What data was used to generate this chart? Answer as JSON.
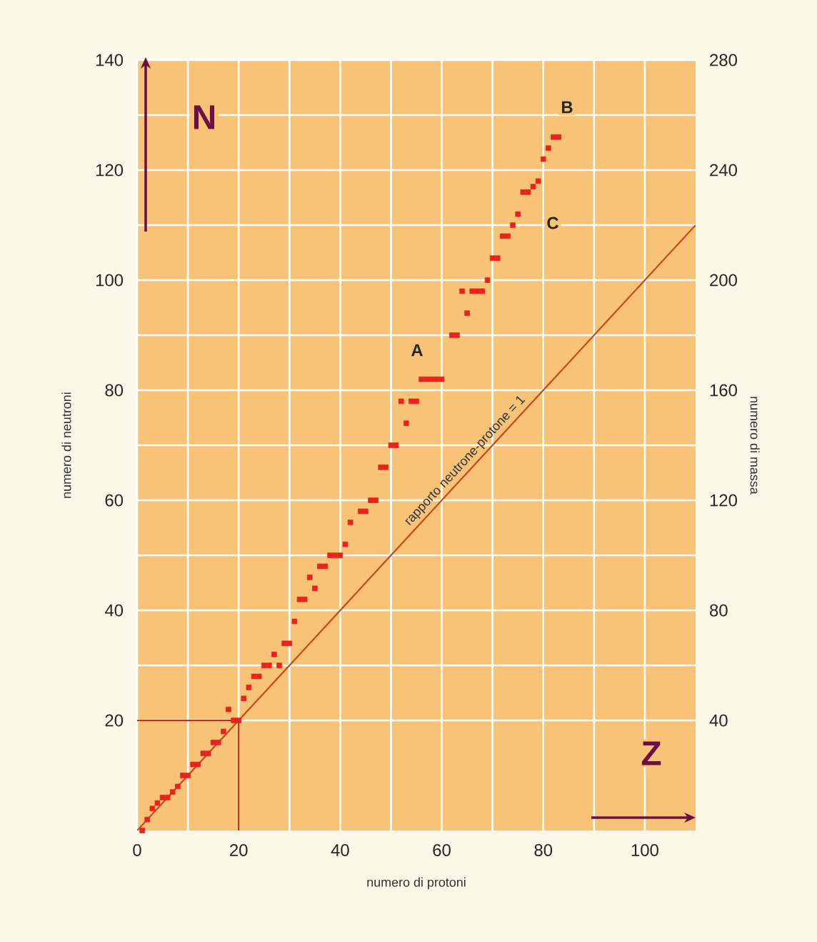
{
  "chart_data": {
    "type": "scatter",
    "xlabel": "numero di protoni",
    "ylabel": "numero di neutroni",
    "y2label": "numero di massa",
    "xlim": [
      0,
      110
    ],
    "xticks": [
      0,
      20,
      40,
      60,
      80,
      100
    ],
    "ylim": [
      0,
      140
    ],
    "yticks": [
      20,
      40,
      60,
      80,
      100,
      120,
      140
    ],
    "y2lim": [
      0,
      280
    ],
    "y2ticks": [
      40,
      80,
      120,
      160,
      200,
      240,
      280
    ],
    "grid": true,
    "series": [
      {
        "color": "#e8231c",
        "marker": "square",
        "x": [
          1,
          2,
          3,
          4,
          5,
          6,
          7,
          8,
          9,
          10,
          11,
          12,
          13,
          14,
          15,
          16,
          17,
          18,
          19,
          20,
          21,
          22,
          23,
          24,
          25,
          26,
          27,
          28,
          29,
          30,
          31,
          32,
          33,
          34,
          35,
          36,
          37,
          38,
          39,
          40,
          41,
          42,
          44,
          45,
          46,
          47,
          48,
          49,
          50,
          51,
          52,
          53,
          54,
          55,
          56,
          57,
          58,
          59,
          60,
          62,
          63,
          64,
          65,
          66,
          67,
          68,
          69,
          70,
          71,
          72,
          73,
          74,
          75,
          76,
          77,
          78,
          79,
          80,
          81,
          82,
          83
        ],
        "values": [
          0,
          2,
          4,
          5,
          6,
          6,
          7,
          8,
          10,
          10,
          12,
          12,
          14,
          14,
          16,
          16,
          18,
          22,
          20,
          20,
          24,
          26,
          28,
          28,
          30,
          30,
          32,
          30,
          34,
          34,
          38,
          42,
          42,
          46,
          44,
          48,
          48,
          50,
          50,
          50,
          52,
          56,
          58,
          58,
          60,
          60,
          66,
          66,
          70,
          70,
          78,
          74,
          78,
          78,
          82,
          82,
          82,
          82,
          82,
          90,
          90,
          98,
          94,
          98,
          98,
          98,
          100,
          104,
          104,
          108,
          108,
          110,
          112,
          116,
          116,
          117,
          118,
          122,
          124,
          126,
          126
        ]
      },
      {
        "type": "line",
        "color": "#c8461e",
        "name": "rapporto neutrone-protone = 1",
        "x": [
          0,
          110
        ],
        "values": [
          0,
          110
        ]
      },
      {
        "type": "line",
        "color": "#d0281e",
        "x": [
          0,
          20,
          20
        ],
        "values": [
          20,
          20,
          0
        ]
      }
    ],
    "annotations": [
      "A",
      "B",
      "C",
      "N",
      "Z"
    ]
  }
}
